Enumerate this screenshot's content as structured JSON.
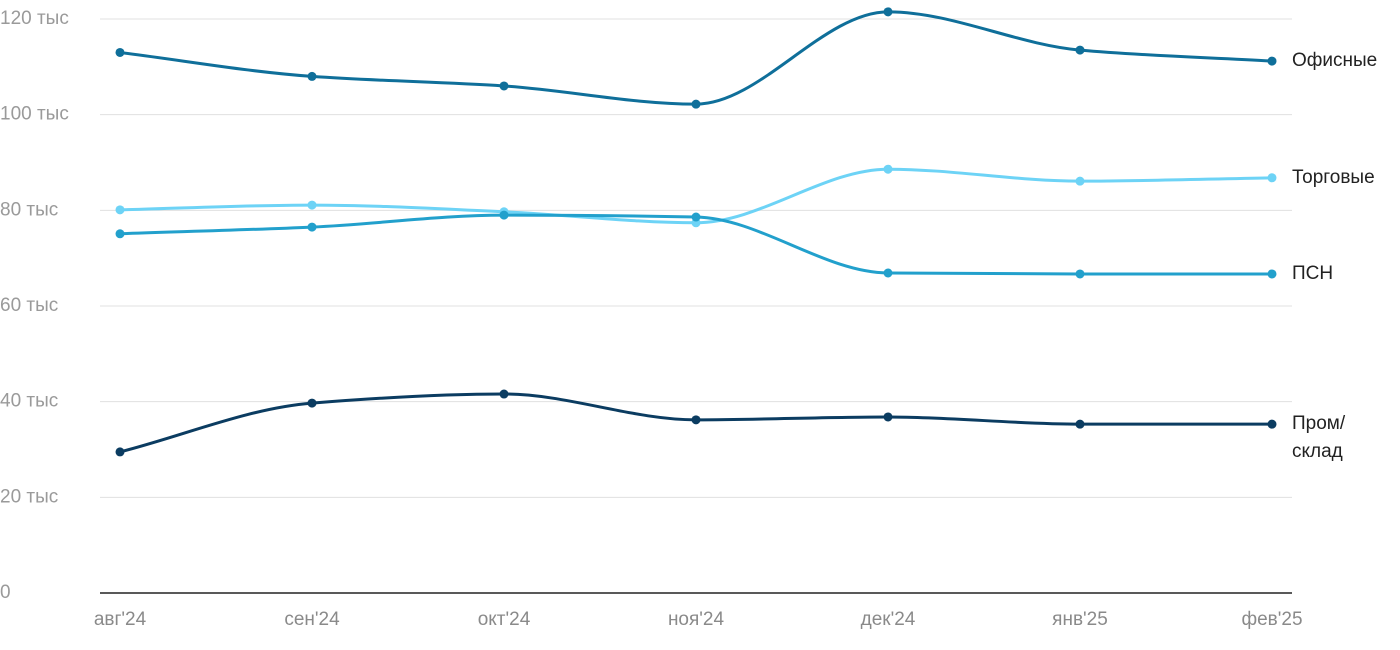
{
  "chart_data": {
    "type": "line",
    "categories": [
      "авг'24",
      "сен'24",
      "окт'24",
      "ноя'24",
      "дек'24",
      "янв'25",
      "фев'25"
    ],
    "series": [
      {
        "name": "Офисные",
        "color": "#0f6f9a",
        "values": [
          113000,
          108000,
          106000,
          102200,
          121500,
          113500,
          111200
        ]
      },
      {
        "name": "Торговые",
        "color": "#6dd3f6",
        "values": [
          80100,
          81100,
          79700,
          77400,
          88600,
          86100,
          86800
        ]
      },
      {
        "name": "ПСН",
        "color": "#22a0cc",
        "values": [
          75100,
          76500,
          79000,
          78600,
          66900,
          66700,
          66700
        ]
      },
      {
        "name": "Пром/\nсклад",
        "color": "#0b3c61",
        "values": [
          29500,
          39700,
          41600,
          36200,
          36800,
          35300,
          35300
        ]
      }
    ],
    "ylim": [
      0,
      120000
    ],
    "yticks": [
      0,
      {
        "value": 20000,
        "label": "20 тыс"
      },
      {
        "value": 40000,
        "label": "40 тыс"
      },
      {
        "value": 60000,
        "label": "60 тыс"
      },
      {
        "value": 80000,
        "label": "80 тыс"
      },
      {
        "value": 100000,
        "label": "100 тыс"
      },
      {
        "value": 120000,
        "label": "120 тыс"
      }
    ],
    "grid": true
  }
}
